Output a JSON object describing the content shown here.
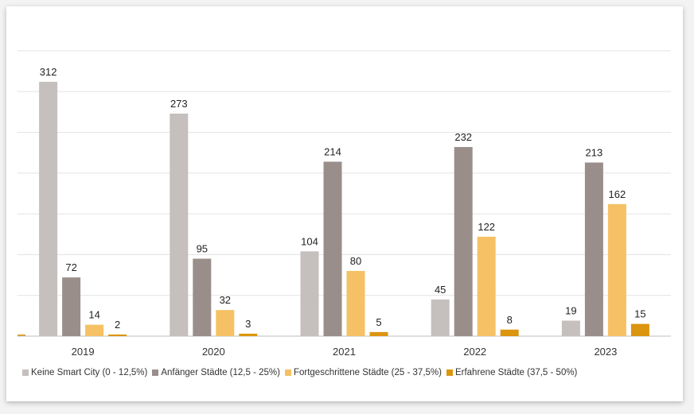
{
  "chart_data": {
    "type": "bar",
    "title": "",
    "xlabel": "",
    "ylabel": "",
    "ylim": [
      0,
      350
    ],
    "grid": true,
    "legend_position": "bottom",
    "categories": [
      "2019",
      "2020",
      "2021",
      "2022",
      "2023"
    ],
    "series": [
      {
        "name": "Keine Smart City (0 - 12,5%)",
        "color": "#c5bfbd",
        "values": [
          312,
          273,
          104,
          45,
          19
        ]
      },
      {
        "name": "Anfänger Städte (12,5 - 25%)",
        "color": "#9a8e8b",
        "values": [
          72,
          95,
          214,
          232,
          213
        ]
      },
      {
        "name": "Fortgeschrittene Städte (25 - 37,5%)",
        "color": "#f5c164",
        "values": [
          14,
          32,
          80,
          122,
          162
        ]
      },
      {
        "name": "Erfahrene Städte (37,5 - 50%)",
        "color": "#dc950e",
        "values": [
          2,
          3,
          5,
          8,
          15
        ]
      }
    ]
  }
}
